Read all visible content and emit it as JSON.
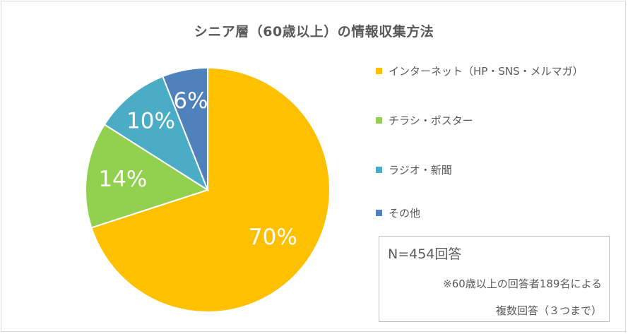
{
  "chart_data": {
    "type": "pie",
    "title": "シニア層（60歳以上）の情報収集方法",
    "categories": [
      "インターネット（HP・SNS・メルマガ）",
      "チラシ・ポスター",
      "ラジオ・新聞",
      "その他"
    ],
    "values": [
      70,
      14,
      10,
      6
    ],
    "data_labels": [
      "70%",
      "14%",
      "10%",
      "6%"
    ],
    "colors": [
      "#ffc000",
      "#92d050",
      "#4bacc6",
      "#4f81bd"
    ],
    "legend_position": "right",
    "start_angle_deg": 0,
    "direction": "clockwise"
  },
  "note": {
    "n_label": "N=454回答",
    "line1": "※60歳以上の回答者189名による",
    "line2": "複数回答（３つまで）"
  }
}
